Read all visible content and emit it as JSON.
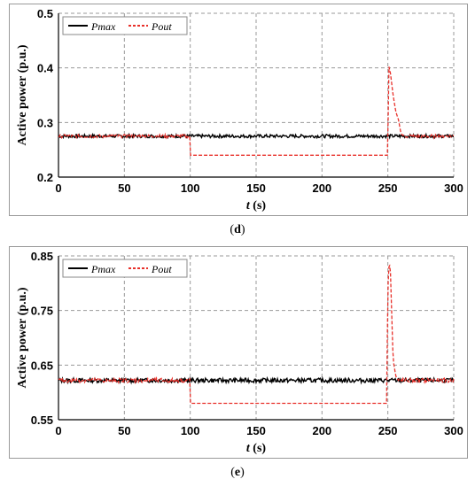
{
  "captions": {
    "d": "d",
    "e": "e"
  },
  "chart_data": [
    {
      "panel": "d",
      "type": "line",
      "xlabel_italic": "t",
      "xlabel_unit": "(s)",
      "ylabel": "Active power (p.u.)",
      "xlim": [
        0,
        300
      ],
      "ylim": [
        0.2,
        0.5
      ],
      "xticks": [
        0,
        50,
        100,
        150,
        200,
        250,
        300
      ],
      "yticks": [
        0.2,
        0.3,
        0.4,
        0.5
      ],
      "ytick_labels": [
        "0.2",
        "0.3",
        "0.4",
        "0.5"
      ],
      "grid": true,
      "legend_position": "top-left",
      "series": [
        {
          "name": "Pmax",
          "color": "#000000",
          "dash": "solid",
          "x": [
            0,
            100,
            100.5,
            250,
            250.5,
            300
          ],
          "y": [
            0.275,
            0.275,
            0.275,
            0.275,
            0.275,
            0.275
          ],
          "noise_amplitude": 0.003
        },
        {
          "name": "Pout",
          "color": "#e8302a",
          "dash": "dashed",
          "x": [
            0,
            99.9,
            100,
            250,
            250.5,
            252,
            254,
            256,
            258,
            260,
            262,
            300
          ],
          "y": [
            0.275,
            0.275,
            0.24,
            0.24,
            0.405,
            0.39,
            0.35,
            0.32,
            0.305,
            0.28,
            0.275,
            0.275
          ],
          "noisy_ranges": [
            [
              0,
              99.9
            ],
            [
              262,
              300
            ]
          ],
          "noise_amplitude": 0.003
        }
      ]
    },
    {
      "panel": "e",
      "type": "line",
      "xlabel_italic": "t",
      "xlabel_unit": "(s)",
      "ylabel": "Active power (p.u.)",
      "xlim": [
        0,
        300
      ],
      "ylim": [
        0.55,
        0.85
      ],
      "xticks": [
        0,
        50,
        100,
        150,
        200,
        250,
        300
      ],
      "yticks": [
        0.55,
        0.65,
        0.75,
        0.85
      ],
      "ytick_labels": [
        "0.55",
        "0.65",
        "0.75",
        "0.85"
      ],
      "grid": true,
      "legend_position": "top-left",
      "series": [
        {
          "name": "Pmax",
          "color": "#000000",
          "dash": "solid",
          "x": [
            0,
            100,
            100.5,
            250,
            250.5,
            300
          ],
          "y": [
            0.622,
            0.622,
            0.622,
            0.622,
            0.622,
            0.622
          ],
          "noise_amplitude": 0.004
        },
        {
          "name": "Pout",
          "color": "#e8302a",
          "dash": "dashed",
          "x": [
            0,
            99.9,
            100,
            249,
            250,
            251,
            252,
            253,
            254,
            256,
            258,
            300
          ],
          "y": [
            0.622,
            0.622,
            0.58,
            0.58,
            0.79,
            0.84,
            0.82,
            0.74,
            0.66,
            0.63,
            0.622,
            0.622
          ],
          "noisy_ranges": [
            [
              0,
              99.9
            ],
            [
              258,
              300
            ]
          ],
          "noise_amplitude": 0.004
        }
      ]
    }
  ]
}
